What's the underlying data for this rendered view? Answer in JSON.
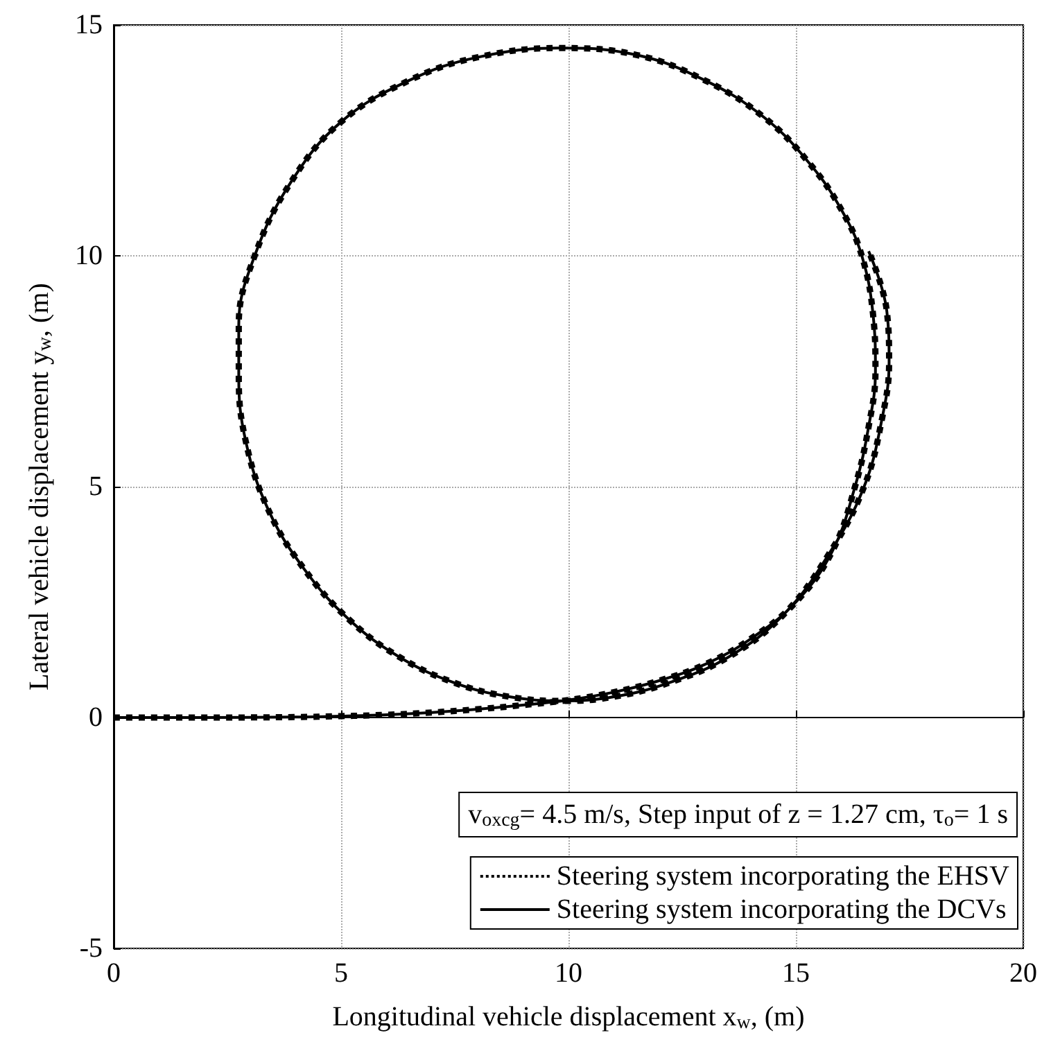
{
  "chart_data": {
    "type": "line",
    "xlabel": "Longitudinal vehicle displacement x$_{w}$, (m)",
    "ylabel": "Lateral vehicle displacement y$_{w}$, (m)",
    "xlim": [
      0,
      20
    ],
    "xticks": [
      0,
      5,
      10,
      15,
      20
    ],
    "ylim": [
      -5,
      15
    ],
    "yticks": [
      -5,
      0,
      5,
      10,
      15
    ],
    "grid": true,
    "legend": "bottom right",
    "marker": "none",
    "annotations": [
      "v$_{oxcg}$= 4.5 m/s, Step input of z = 1.27 cm, τ$_{o}$= 1 s"
    ],
    "x": [
      0,
      2,
      4,
      5,
      6,
      7,
      8,
      9,
      10,
      11,
      12,
      13,
      14,
      15,
      15.8,
      16.3,
      16.6,
      16.75,
      16.7,
      16.45,
      16.0,
      15.3,
      14.3,
      13,
      11.5,
      9.8,
      8,
      6.5,
      5,
      3.9,
      3.1,
      2.75,
      2.75,
      2.9,
      3.4,
      4.2,
      5.2,
      6.3,
      7.5,
      8.7,
      9.9,
      11,
      12.2,
      13.5,
      14.7,
      15.7,
      16.5,
      16.9,
      17.05,
      17,
      16.6
    ],
    "series": [
      {
        "name": "Steering system incorporating the DCVs",
        "color": "#000000",
        "line_style": "solid",
        "values": [
          0,
          0,
          0.01,
          0.03,
          0.06,
          0.11,
          0.18,
          0.27,
          0.38,
          0.55,
          0.8,
          1.15,
          1.7,
          2.5,
          3.6,
          5,
          6.3,
          7.5,
          8.7,
          10,
          11,
          12,
          13,
          13.8,
          14.35,
          14.5,
          14.3,
          13.8,
          12.9,
          11.6,
          10,
          8.5,
          7.4,
          6,
          4.5,
          3.2,
          2.1,
          1.3,
          0.75,
          0.45,
          0.36,
          0.45,
          0.75,
          1.3,
          2.2,
          3.5,
          5,
          6.5,
          7.7,
          8.8,
          10.1
        ]
      },
      {
        "name": "Steering system incorporating the EHSV",
        "color": "#000000",
        "line_style": "dotted",
        "values": [
          0,
          0,
          0.01,
          0.03,
          0.06,
          0.11,
          0.18,
          0.27,
          0.38,
          0.55,
          0.8,
          1.15,
          1.7,
          2.5,
          3.6,
          5,
          6.3,
          7.5,
          8.7,
          10,
          11,
          12,
          13,
          13.8,
          14.35,
          14.5,
          14.3,
          13.8,
          12.9,
          11.6,
          10,
          8.5,
          7.4,
          6,
          4.5,
          3.2,
          2.1,
          1.3,
          0.75,
          0.45,
          0.36,
          0.45,
          0.75,
          1.3,
          2.2,
          3.5,
          5,
          6.5,
          7.7,
          8.8,
          10.1
        ]
      }
    ]
  }
}
